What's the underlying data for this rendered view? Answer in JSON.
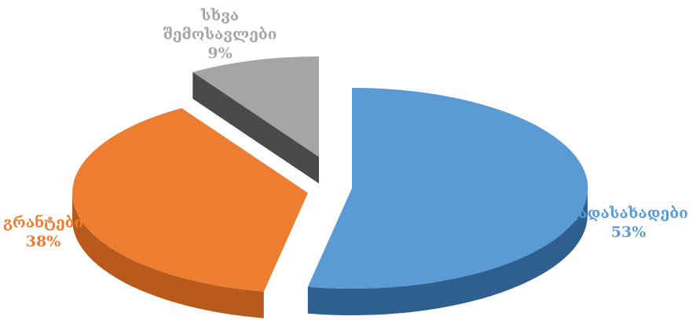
{
  "chart_data": {
    "type": "pie",
    "style": "3d-exploded",
    "slices": [
      {
        "label": "გადასახადები",
        "value": 53,
        "display": "53%",
        "color": "#5b9bd5",
        "side_color": "#2f5f8f"
      },
      {
        "label": "გრანტები",
        "value": 38,
        "display": "38%",
        "color": "#ed7d31",
        "side_color": "#b85a1c"
      },
      {
        "label": "სხვა შემოსავლები",
        "label_lines": [
          "სხვა",
          "შემოსავლები"
        ],
        "value": 9,
        "display": "9%",
        "color": "#a5a5a5",
        "side_color": "#4a4a4a"
      }
    ],
    "legend": "none"
  }
}
